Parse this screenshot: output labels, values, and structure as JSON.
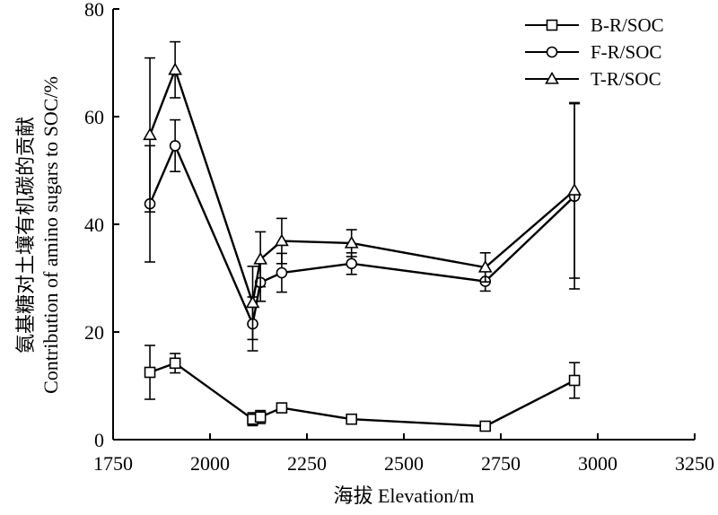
{
  "chart_data": {
    "type": "line",
    "xlabel": "海拔 Elevation/m",
    "ylabel_cn": "氨基糖对土壤有机碳的贡献",
    "ylabel_en": "Contribution of amino sugars to SOC/%",
    "xlim": [
      1750,
      3250
    ],
    "ylim": [
      0,
      80
    ],
    "xticks": [
      1750,
      2000,
      2250,
      2500,
      2750,
      3000,
      3250
    ],
    "yticks": [
      0,
      20,
      40,
      60,
      80
    ],
    "grid": false,
    "legend_position": "top-right",
    "x": [
      1845,
      1910,
      2110,
      2130,
      2185,
      2365,
      2710,
      2940
    ],
    "series": [
      {
        "name": "B-R/SOC",
        "marker": "square",
        "values": [
          12.5,
          14.2,
          3.8,
          4.2,
          5.9,
          3.8,
          2.5,
          11.0
        ],
        "errors": [
          5.0,
          1.8,
          1.2,
          1.2,
          0.8,
          0.6,
          0.5,
          3.3
        ]
      },
      {
        "name": "F-R/SOC",
        "marker": "circle",
        "values": [
          43.8,
          54.6,
          21.5,
          29.2,
          31.0,
          32.7,
          29.4,
          45.2
        ],
        "errors": [
          10.8,
          4.8,
          5.0,
          3.5,
          3.6,
          2.0,
          1.8,
          17.2
        ]
      },
      {
        "name": "T-R/SOC",
        "marker": "triangle",
        "values": [
          56.6,
          68.7,
          25.4,
          33.5,
          36.9,
          36.5,
          32.0,
          46.3
        ],
        "errors": [
          14.3,
          5.2,
          6.8,
          5.1,
          4.2,
          2.5,
          2.7,
          16.3
        ]
      }
    ]
  }
}
